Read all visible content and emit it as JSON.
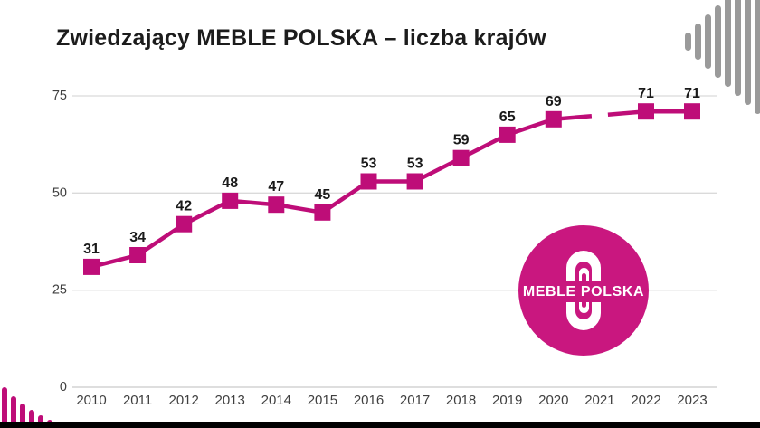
{
  "title": "Zwiedzający MEBLE POLSKA – liczba krajów",
  "logo": {
    "text": "MEBLE POLSKA",
    "color": "#C9177F"
  },
  "colors": {
    "accent": "#BE0D78",
    "grid": "#DADADA",
    "zero_axis": "#C9C9C9",
    "data_label": "#1A1A1A",
    "tick_label": "#3F3F3F",
    "stripes_gray": "#9A9A9A",
    "footer_bar": "#000000",
    "background": "#FFFFFF"
  },
  "chart_data": {
    "type": "line",
    "title": "Zwiedzający MEBLE POLSKA – liczba krajów",
    "categories": [
      "2010",
      "2011",
      "2012",
      "2013",
      "2014",
      "2015",
      "2016",
      "2017",
      "2018",
      "2019",
      "2020",
      "2021",
      "2022",
      "2023"
    ],
    "values": [
      31,
      34,
      42,
      48,
      47,
      45,
      53,
      53,
      59,
      65,
      69,
      null,
      71,
      71
    ],
    "data_labels": [
      "31",
      "34",
      "42",
      "48",
      "47",
      "45",
      "53",
      "53",
      "59",
      "65",
      "69",
      "",
      "71",
      "71"
    ],
    "yticks": [
      0,
      25,
      50,
      75
    ],
    "ylim": [
      0,
      75
    ],
    "xlabel": "",
    "ylabel": "",
    "grid": "horizontal",
    "legend": "none",
    "marker": "square",
    "gap_note_year": "2021"
  }
}
